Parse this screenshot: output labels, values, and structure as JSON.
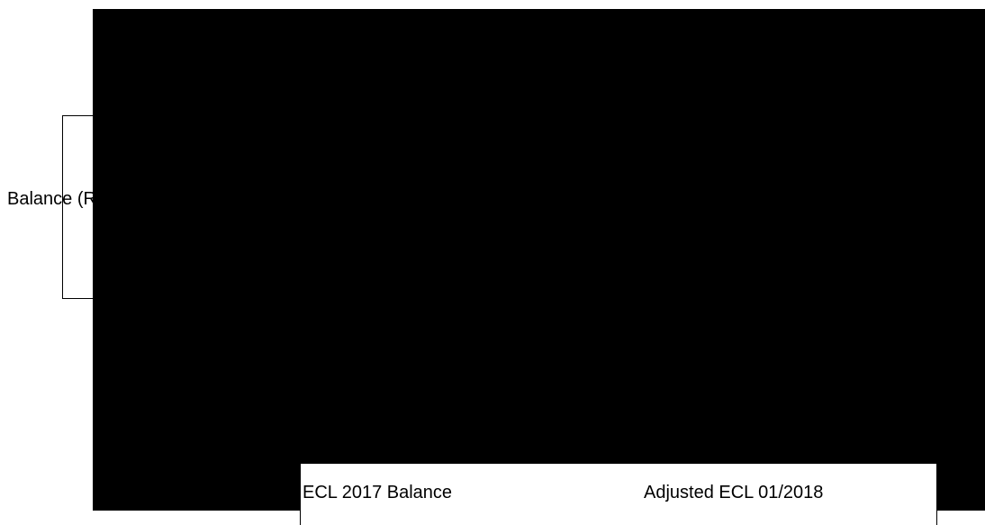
{
  "chart": {
    "ylabel_fragment": "Balance (R$",
    "categories": [
      "ECL 2017 Balance",
      "Adjusted ECL 01/2018"
    ]
  }
}
